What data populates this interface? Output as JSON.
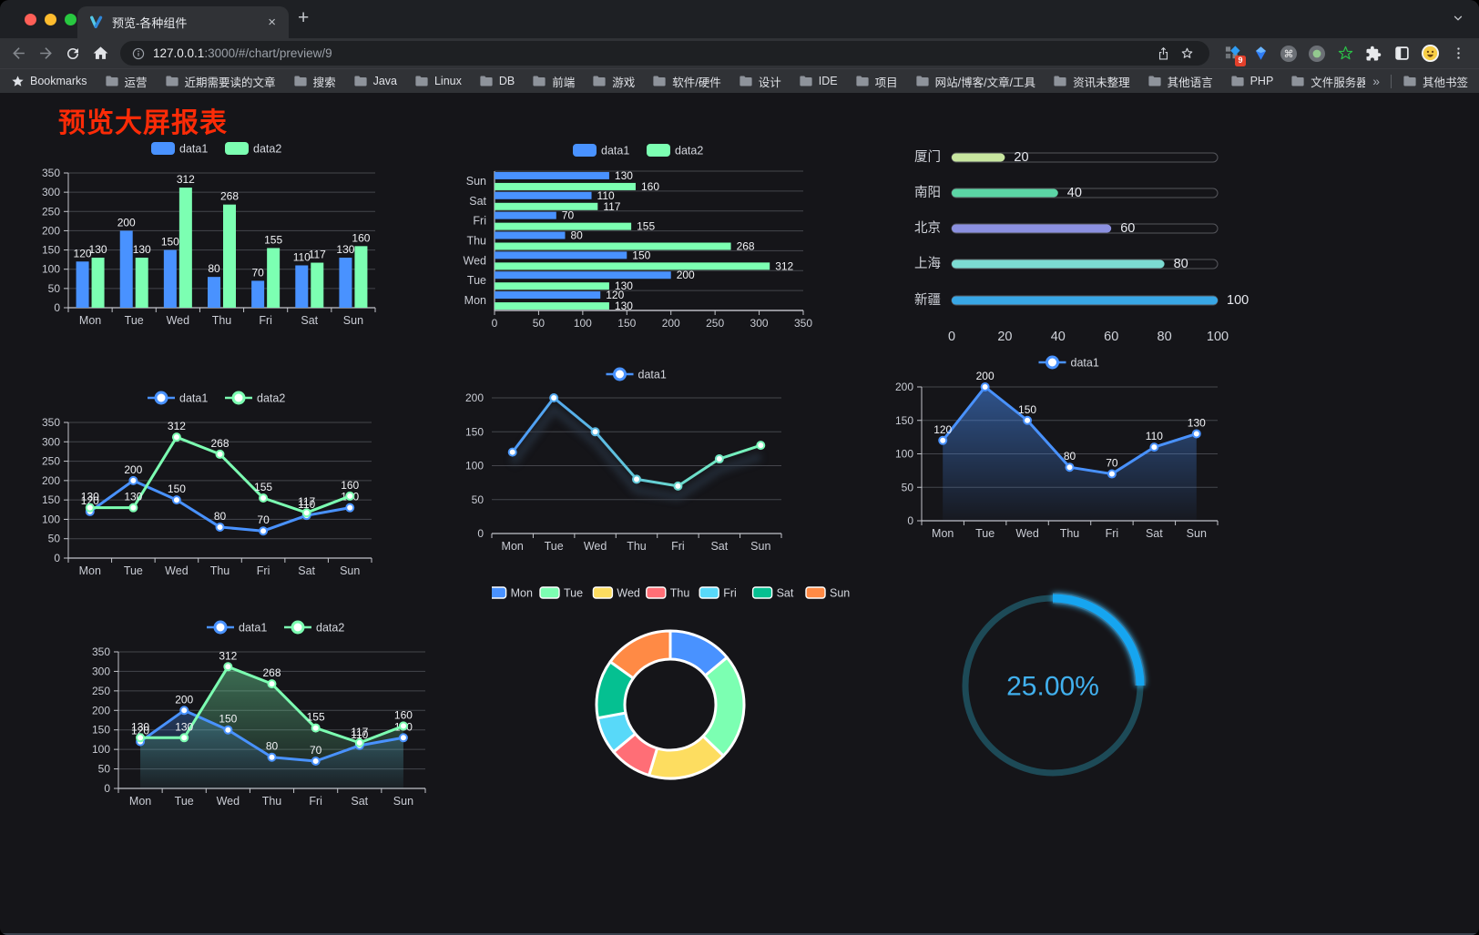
{
  "browser": {
    "tab_title": "预览-各种组件",
    "tab_close": "×",
    "new_tab": "+",
    "url_host": "127.0.0.1",
    "url_rest": ":3000/#/chart/preview/9",
    "url_full": "127.0.0.1:3000/#/chart/preview/9",
    "bookmarks_label": "Bookmarks",
    "bookmarks": [
      "运营",
      "近期需要读的文章",
      "搜索",
      "Java",
      "Linux",
      "DB",
      "前端",
      "游戏",
      "软件/硬件",
      "设计",
      "IDE",
      "项目",
      "网站/博客/文章/工具",
      "资讯未整理",
      "其他语言",
      "PHP",
      "文件服务器"
    ],
    "bookmarks_overflow": "»",
    "other_bookmarks": "其他书签",
    "extension_badge": "9"
  },
  "page": {
    "title": "预览大屏报表",
    "title_color": "#fb2b07",
    "background": "#151519"
  },
  "chart_data": [
    {
      "id": "grouped-bar",
      "type": "bar",
      "categories": [
        "Mon",
        "Tue",
        "Wed",
        "Thu",
        "Fri",
        "Sat",
        "Sun"
      ],
      "series": [
        {
          "name": "data1",
          "color": "#4992ff",
          "values": [
            120,
            200,
            150,
            80,
            70,
            110,
            130
          ]
        },
        {
          "name": "data2",
          "color": "#7cffb2",
          "values": [
            130,
            130,
            312,
            268,
            155,
            117,
            160
          ]
        }
      ],
      "ylim": [
        0,
        350
      ],
      "ytick_step": 50,
      "grid": true,
      "legend_position": "top",
      "value_labels": true
    },
    {
      "id": "grouped-bar-horizontal",
      "type": "bar-horizontal",
      "categories": [
        "Mon",
        "Tue",
        "Wed",
        "Thu",
        "Fri",
        "Sat",
        "Sun"
      ],
      "series": [
        {
          "name": "data1",
          "color": "#4992ff",
          "values": [
            120,
            200,
            150,
            80,
            70,
            110,
            130
          ]
        },
        {
          "name": "data2",
          "color": "#7cffb2",
          "values": [
            130,
            130,
            312,
            268,
            155,
            117,
            160
          ]
        }
      ],
      "xlim": [
        0,
        350
      ],
      "xtick_step": 50,
      "grid": true,
      "legend_position": "top",
      "value_labels": true
    },
    {
      "id": "city-progress",
      "type": "progress-bar",
      "categories": [
        "厦门",
        "南阳",
        "北京",
        "上海",
        "新疆"
      ],
      "values": [
        20,
        40,
        60,
        80,
        100
      ],
      "colors": [
        "#c8e6a0",
        "#5bd5a5",
        "#8b90e0",
        "#7cdcd2",
        "#38a7e6"
      ],
      "xlim": [
        0,
        100
      ],
      "xtick_step": 20,
      "value_labels": true
    },
    {
      "id": "two-line",
      "type": "line",
      "categories": [
        "Mon",
        "Tue",
        "Wed",
        "Thu",
        "Fri",
        "Sat",
        "Sun"
      ],
      "series": [
        {
          "name": "data1",
          "color": "#4992ff",
          "values": [
            120,
            200,
            150,
            80,
            70,
            110,
            130
          ]
        },
        {
          "name": "data2",
          "color": "#7cffb2",
          "values": [
            130,
            130,
            312,
            268,
            155,
            117,
            160
          ]
        }
      ],
      "ylim": [
        0,
        350
      ],
      "ytick_step": 50,
      "grid": true,
      "legend_position": "top",
      "value_labels": true
    },
    {
      "id": "gradient-line",
      "type": "line",
      "categories": [
        "Mon",
        "Tue",
        "Wed",
        "Thu",
        "Fri",
        "Sat",
        "Sun"
      ],
      "series": [
        {
          "name": "data1",
          "color": "#4992ff",
          "color_gradient": [
            "#4992ff",
            "#7cffb2"
          ],
          "values": [
            120,
            200,
            150,
            80,
            70,
            110,
            130
          ]
        }
      ],
      "ylim": [
        0,
        200
      ],
      "ytick_step": 50,
      "grid": true,
      "legend_position": "top",
      "value_labels": false
    },
    {
      "id": "area-line",
      "type": "area",
      "categories": [
        "Mon",
        "Tue",
        "Wed",
        "Thu",
        "Fri",
        "Sat",
        "Sun"
      ],
      "series": [
        {
          "name": "data1",
          "color": "#4992ff",
          "values": [
            120,
            200,
            150,
            80,
            70,
            110,
            130
          ]
        }
      ],
      "ylim": [
        0,
        200
      ],
      "ytick_step": 50,
      "grid": true,
      "legend_position": "top",
      "value_labels": true
    },
    {
      "id": "two-area-line",
      "type": "area",
      "categories": [
        "Mon",
        "Tue",
        "Wed",
        "Thu",
        "Fri",
        "Sat",
        "Sun"
      ],
      "series": [
        {
          "name": "data1",
          "color": "#4992ff",
          "values": [
            120,
            200,
            150,
            80,
            70,
            110,
            130
          ]
        },
        {
          "name": "data2",
          "color": "#7cffb2",
          "values": [
            130,
            130,
            312,
            268,
            155,
            117,
            160
          ]
        }
      ],
      "ylim": [
        0,
        350
      ],
      "ytick_step": 50,
      "grid": true,
      "legend_position": "top",
      "value_labels": true
    },
    {
      "id": "weekday-donut",
      "type": "pie",
      "donut": true,
      "categories": [
        "Mon",
        "Tue",
        "Wed",
        "Thu",
        "Fri",
        "Sat",
        "Sun"
      ],
      "values": [
        120,
        200,
        150,
        80,
        70,
        110,
        130
      ],
      "colors": [
        "#4992ff",
        "#7cffb2",
        "#fddd60",
        "#ff6e76",
        "#58d9f9",
        "#05c091",
        "#ff8a45"
      ],
      "legend_position": "top"
    },
    {
      "id": "percent-gauge",
      "type": "gauge",
      "value": 25,
      "label": "25.00%",
      "color": "#17a5f0",
      "track_color": "#1d4a57",
      "text_color": "#41b0ee"
    }
  ]
}
